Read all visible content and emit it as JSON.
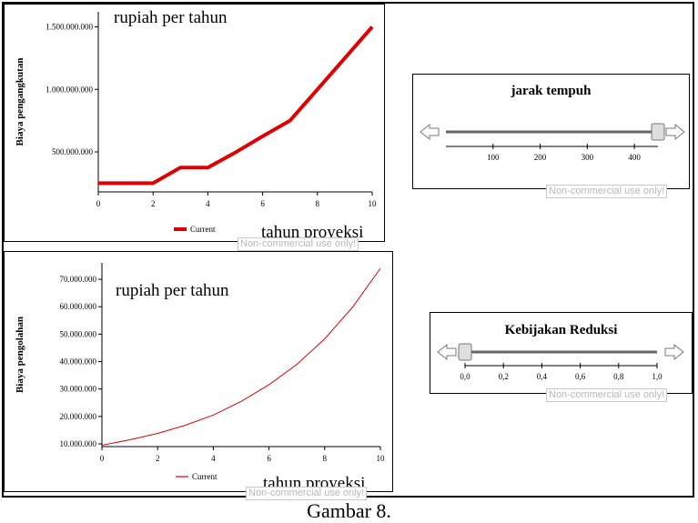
{
  "chart_data": [
    {
      "type": "line",
      "title": "rupiah per tahun",
      "xlabel": "tahun proyeksi",
      "ylabel": "Biaya pengangkutan",
      "xlim": [
        0,
        10
      ],
      "ylim": [
        180000000,
        1620000000
      ],
      "xticks": [
        0,
        2,
        4,
        6,
        8,
        10
      ],
      "yticks": [
        500000000,
        1000000000,
        1500000000
      ],
      "ytick_labels": [
        "500.000.000",
        "1.000.000.000",
        "1.500.000.000"
      ],
      "series": [
        {
          "name": "Current",
          "color": "#e00000",
          "x": [
            0,
            1,
            2,
            3,
            4,
            5,
            6,
            7,
            8,
            9,
            10
          ],
          "y": [
            250000000,
            250000000,
            250000000,
            375000000,
            375000000,
            495000000,
            625000000,
            750000000,
            1000000000,
            1250000000,
            1500000000
          ]
        }
      ]
    },
    {
      "type": "line",
      "title": "rupiah per tahun",
      "xlabel": "tahun proyeksi",
      "ylabel": "Biaya pengolahan",
      "xlim": [
        0,
        10
      ],
      "ylim": [
        9000000,
        76000000
      ],
      "xticks": [
        0,
        2,
        4,
        6,
        8,
        10
      ],
      "yticks": [
        10000000,
        20000000,
        30000000,
        40000000,
        50000000,
        60000000,
        70000000
      ],
      "ytick_labels": [
        "10.000.000",
        "20.000.000",
        "30.000.000",
        "40.000.000",
        "50.000.000",
        "60.000.000",
        "70.000.000"
      ],
      "series": [
        {
          "name": "Current",
          "color": "#e00000",
          "x": [
            0,
            1,
            2,
            3,
            4,
            5,
            6,
            7,
            8,
            9,
            10
          ],
          "y": [
            9500000,
            11500000,
            13800000,
            16800000,
            20500000,
            25500000,
            31600000,
            39000000,
            48300000,
            59800000,
            74000000
          ]
        }
      ]
    }
  ],
  "sliders": [
    {
      "title": "jarak tempuh",
      "ticks": [
        "100",
        "200",
        "300",
        "400"
      ],
      "value": 450,
      "min": 0,
      "max": 450
    },
    {
      "title": "Kebijakan Reduksi",
      "ticks": [
        "0,0",
        "0,2",
        "0,4",
        "0,6",
        "0,8",
        "1,0"
      ],
      "value": 0.0,
      "min": 0.0,
      "max": 1.0
    }
  ],
  "watermark": "Non-commercial use only!",
  "caption": "Gambar 8."
}
